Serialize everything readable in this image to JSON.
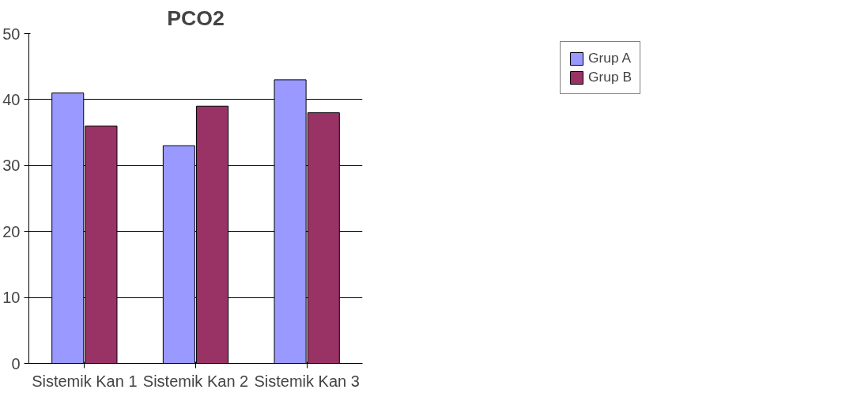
{
  "chart_data": {
    "type": "bar",
    "title": "PCO2",
    "categories": [
      "Sistemik Kan 1",
      "Sistemik Kan 2",
      "Sistemik Kan 3"
    ],
    "series": [
      {
        "name": "Grup A",
        "color": "#9999ff",
        "values": [
          41,
          33,
          43
        ]
      },
      {
        "name": "Grup B",
        "color": "#993366",
        "values": [
          36,
          39,
          38
        ]
      }
    ],
    "ylim": [
      0,
      50
    ],
    "yticks": [
      0,
      10,
      20,
      30,
      40,
      50
    ],
    "grid": "y",
    "legend": "top right"
  }
}
